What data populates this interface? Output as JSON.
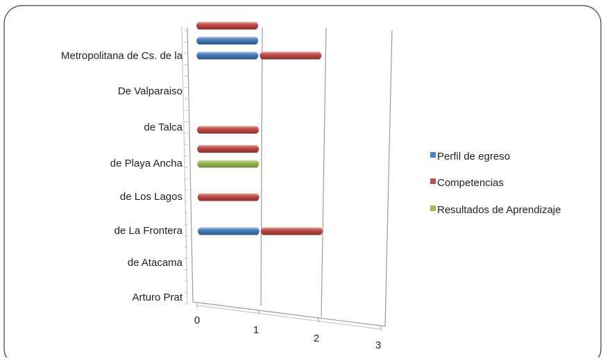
{
  "chart_data": {
    "type": "bar",
    "orientation": "horizontal",
    "stacked": true,
    "three_d": true,
    "categories": [
      "Arturo Prat",
      "de Atacama",
      "de La Frontera",
      "de Los Lagos",
      "de Playa Ancha",
      "de Talca",
      "De Valparaiso",
      "Metropolitana de Cs. de la"
    ],
    "series": [
      {
        "name": "Perfil de egreso",
        "color": "#4f81bd",
        "values": [
          0,
          0,
          1,
          0,
          0,
          0,
          0,
          1
        ]
      },
      {
        "name": "Competencias",
        "color": "#c0504d",
        "values": [
          0,
          0,
          1,
          1,
          1,
          1,
          0,
          1
        ]
      },
      {
        "name": "Resultados de Aprendizaje",
        "color": "#9bbb59",
        "values": [
          0,
          0,
          0,
          0,
          1,
          0,
          0,
          0
        ]
      }
    ],
    "x_ticks": [
      "0",
      "1",
      "2",
      "3"
    ],
    "xlim": [
      0,
      3
    ],
    "gridlines": true,
    "legend_position": "right"
  }
}
